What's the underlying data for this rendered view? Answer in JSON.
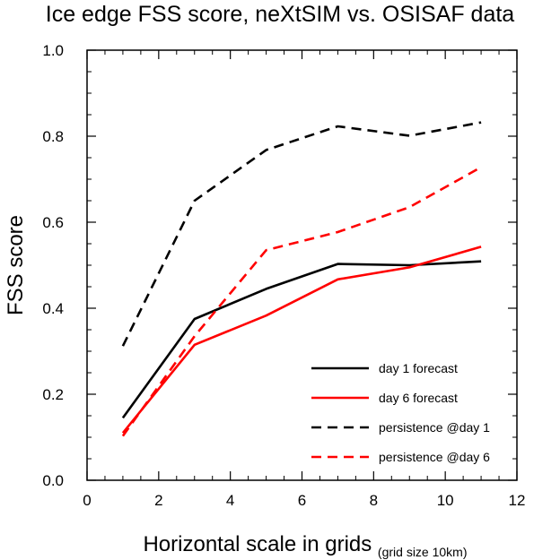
{
  "chart_data": {
    "type": "line",
    "title": "Ice edge FSS score, neXtSIM vs. OSISAF data",
    "xlabel": "Horizontal scale in grids",
    "xlabel_note": "(grid size 10km)",
    "ylabel": "FSS score",
    "xlim": [
      0,
      12
    ],
    "ylim": [
      0.0,
      1.0
    ],
    "xticks": [
      0,
      2,
      4,
      6,
      8,
      10,
      12
    ],
    "xtick_labels": [
      "0",
      "2",
      "4",
      "6",
      "8",
      "10",
      "12"
    ],
    "yticks": [
      0.0,
      0.2,
      0.4,
      0.6,
      0.8,
      1.0
    ],
    "ytick_labels": [
      "0.0",
      "0.2",
      "0.4",
      "0.6",
      "0.8",
      "1.0"
    ],
    "grid": false,
    "legend_position": "bottom-right",
    "x": [
      1,
      3,
      5,
      7,
      9,
      11
    ],
    "series": [
      {
        "name": "day 1 forecast",
        "color": "#000000",
        "dash": "solid",
        "values": [
          0.145,
          0.375,
          0.445,
          0.503,
          0.5,
          0.509
        ]
      },
      {
        "name": "day 6 forecast",
        "color": "#ff0000",
        "dash": "solid",
        "values": [
          0.11,
          0.315,
          0.383,
          0.467,
          0.495,
          0.543
        ]
      },
      {
        "name": "persistence @day 1",
        "color": "#000000",
        "dash": "dashed",
        "values": [
          0.312,
          0.65,
          0.768,
          0.823,
          0.801,
          0.832
        ]
      },
      {
        "name": "persistence @day 6",
        "color": "#ff0000",
        "dash": "dashed",
        "values": [
          0.103,
          0.335,
          0.535,
          0.577,
          0.635,
          0.728
        ]
      }
    ]
  }
}
